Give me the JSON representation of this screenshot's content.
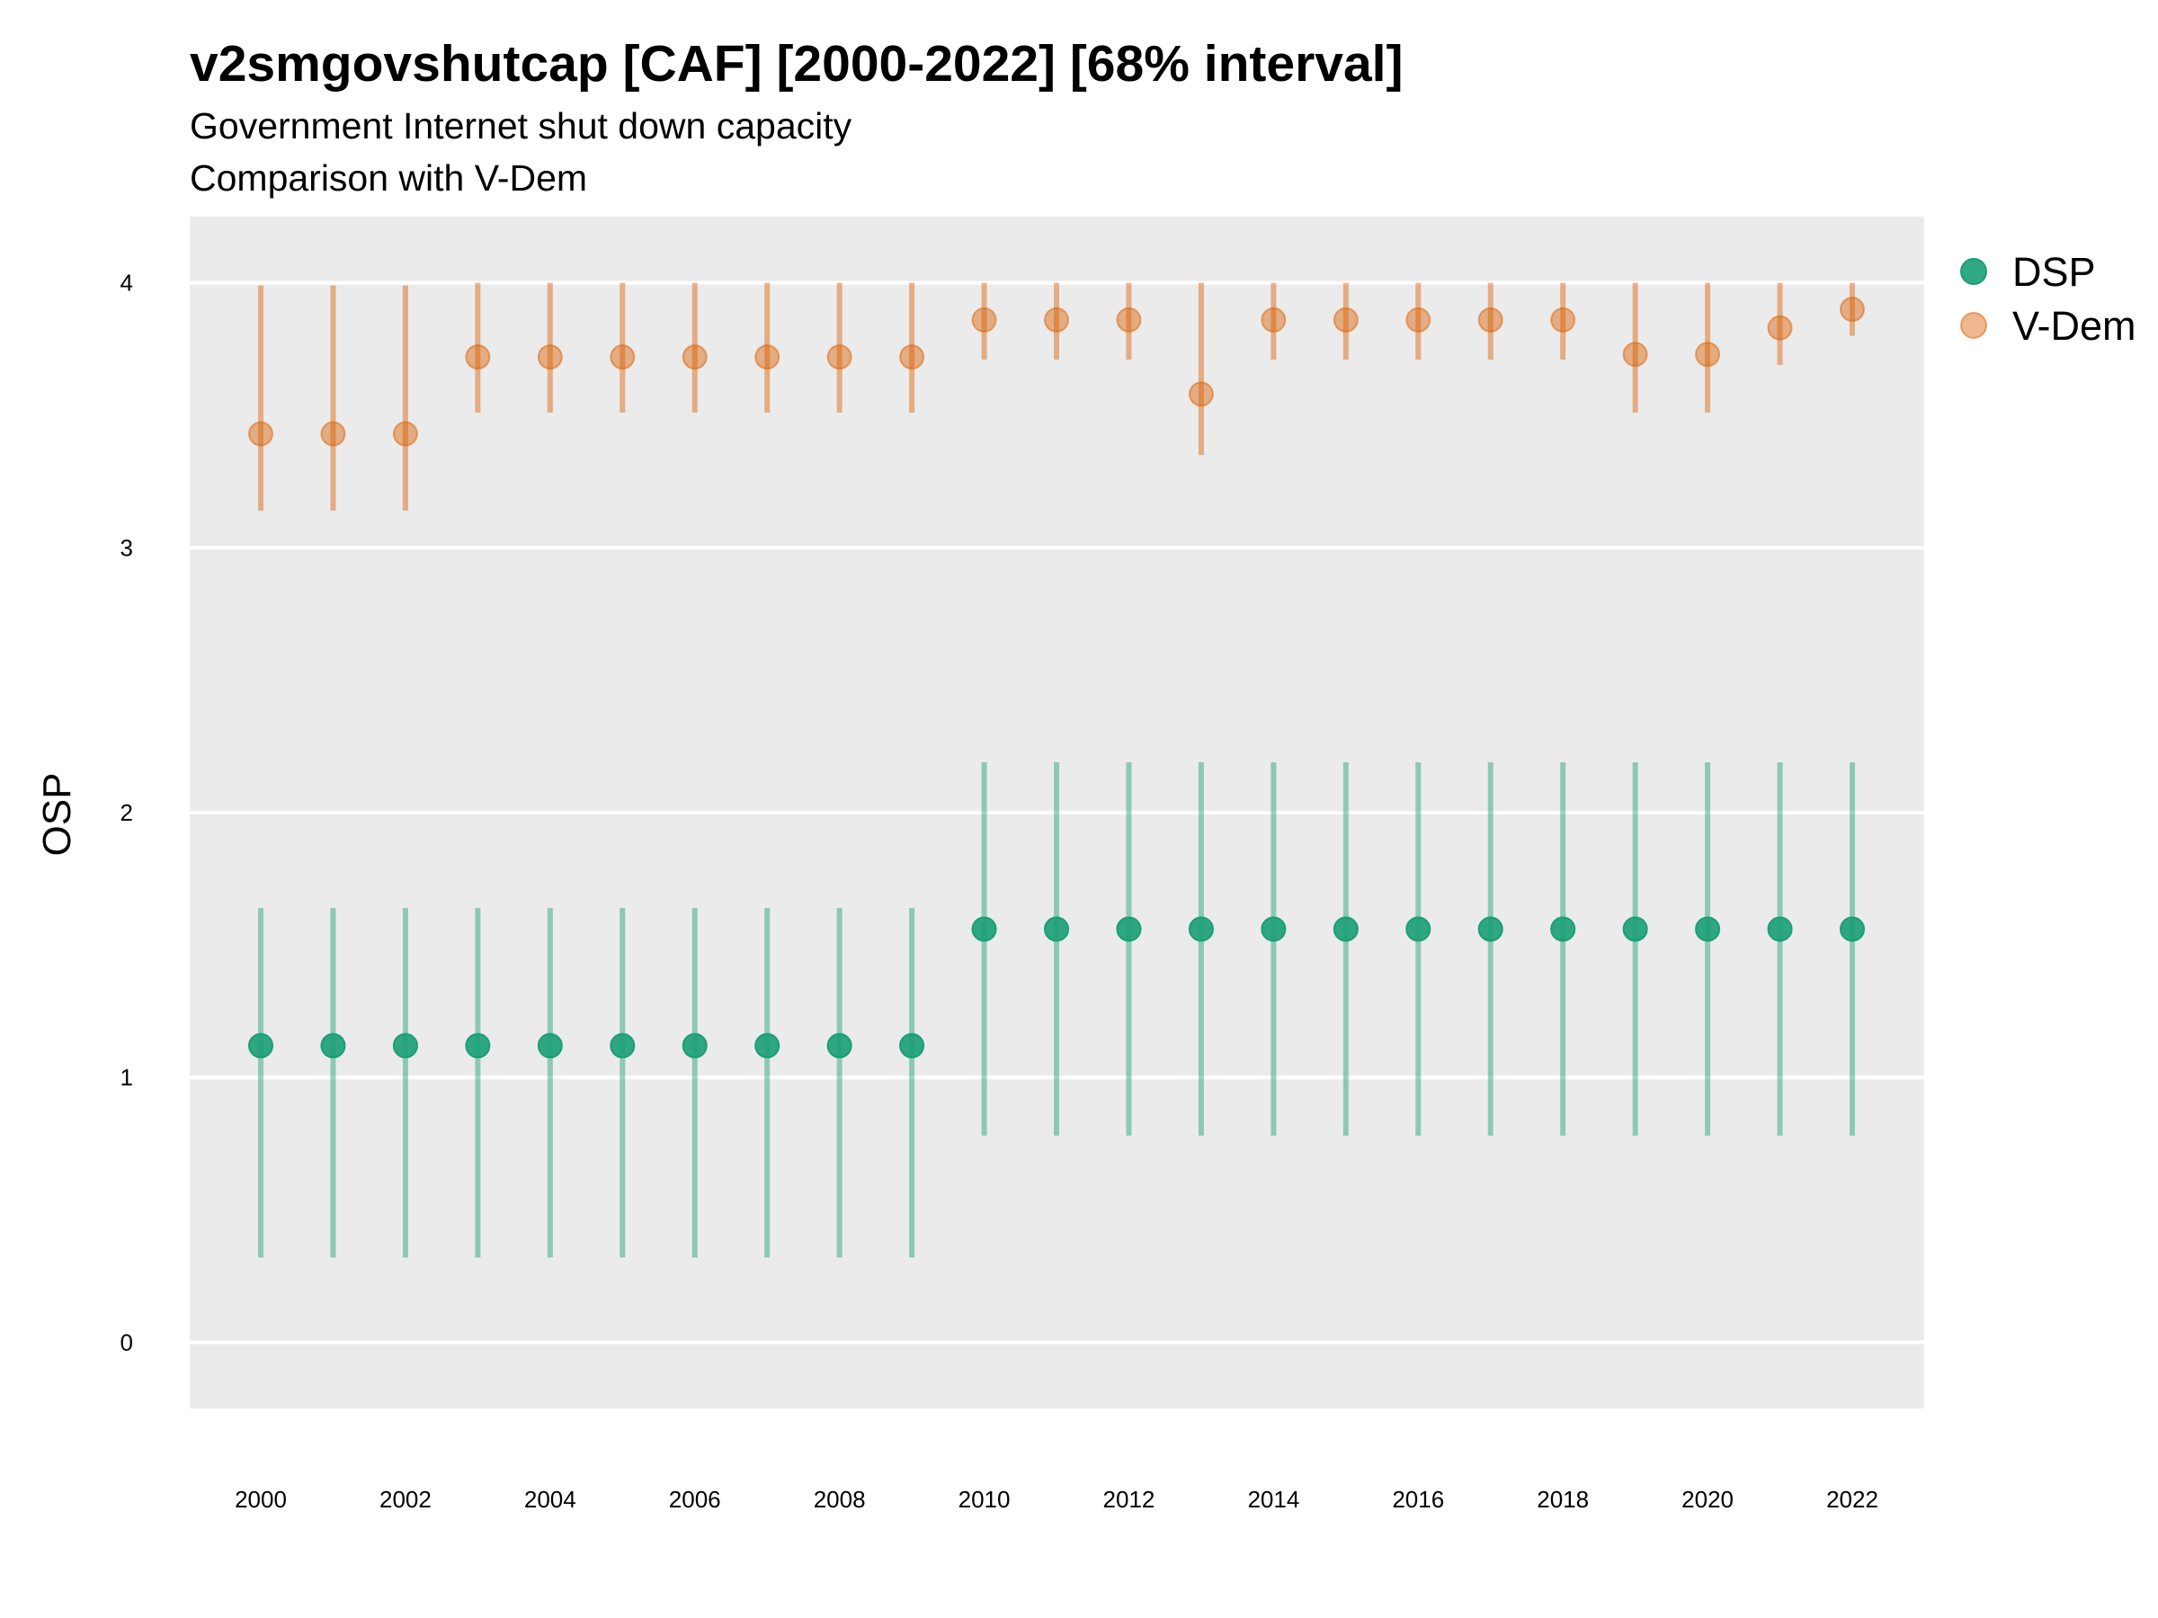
{
  "title": "v2smgovshutcap [CAF] [2000-2022] [68% interval]",
  "subtitle": "Government Internet shut down capacity",
  "subtitle2": "Comparison with V-Dem",
  "colors": {
    "panel": "#ebebeb",
    "grid": "#ffffff",
    "DSP": "#1b9e77",
    "V-Dem": "#d95f02"
  },
  "chart_data": {
    "type": "scatter",
    "title": "v2smgovshutcap [CAF] [2000-2022] [68% interval]",
    "xlabel": "",
    "ylabel": "OSP",
    "ylim": [
      -0.25,
      4.25
    ],
    "yticks": [
      0,
      1,
      2,
      3,
      4
    ],
    "x": [
      2000,
      2001,
      2002,
      2003,
      2004,
      2005,
      2006,
      2007,
      2008,
      2009,
      2010,
      2011,
      2012,
      2013,
      2014,
      2015,
      2016,
      2017,
      2018,
      2019,
      2020,
      2021,
      2022
    ],
    "xticks": [
      2000,
      2002,
      2004,
      2006,
      2008,
      2010,
      2012,
      2014,
      2016,
      2018,
      2020,
      2022
    ],
    "legend_position": "right",
    "series": [
      {
        "name": "DSP",
        "values": [
          1.12,
          1.12,
          1.12,
          1.12,
          1.12,
          1.12,
          1.12,
          1.12,
          1.12,
          1.12,
          1.56,
          1.56,
          1.56,
          1.56,
          1.56,
          1.56,
          1.56,
          1.56,
          1.56,
          1.56,
          1.56,
          1.56,
          1.56
        ],
        "lower": [
          0.32,
          0.32,
          0.32,
          0.32,
          0.32,
          0.32,
          0.32,
          0.32,
          0.32,
          0.32,
          0.78,
          0.78,
          0.78,
          0.78,
          0.78,
          0.78,
          0.78,
          0.78,
          0.78,
          0.78,
          0.78,
          0.78,
          0.78
        ],
        "upper": [
          1.64,
          1.64,
          1.64,
          1.64,
          1.64,
          1.64,
          1.64,
          1.64,
          1.64,
          1.64,
          2.19,
          2.19,
          2.19,
          2.19,
          2.19,
          2.19,
          2.19,
          2.19,
          2.19,
          2.19,
          2.19,
          2.19,
          2.19
        ]
      },
      {
        "name": "V-Dem",
        "values": [
          3.43,
          3.43,
          3.43,
          3.72,
          3.72,
          3.72,
          3.72,
          3.72,
          3.72,
          3.72,
          3.86,
          3.86,
          3.86,
          3.58,
          3.86,
          3.86,
          3.86,
          3.86,
          3.86,
          3.73,
          3.73,
          3.83,
          3.9
        ],
        "lower": [
          3.14,
          3.14,
          3.14,
          3.51,
          3.51,
          3.51,
          3.51,
          3.51,
          3.51,
          3.51,
          3.71,
          3.71,
          3.71,
          3.35,
          3.71,
          3.71,
          3.71,
          3.71,
          3.71,
          3.51,
          3.51,
          3.69,
          3.8
        ],
        "upper": [
          3.99,
          3.99,
          3.99,
          4.0,
          4.0,
          4.0,
          4.0,
          4.0,
          4.0,
          4.0,
          4.0,
          4.0,
          4.0,
          4.0,
          4.0,
          4.0,
          4.0,
          4.0,
          4.0,
          4.0,
          4.0,
          4.0,
          4.0
        ]
      }
    ]
  }
}
